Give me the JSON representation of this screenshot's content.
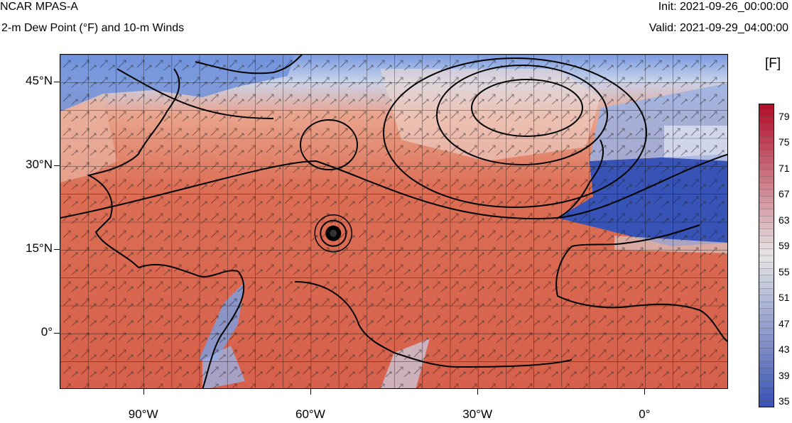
{
  "header": {
    "title": "NCAR MPAS-A",
    "subtitle": "2-m Dew Point (°F) and 10-m Winds",
    "init": "Init: 2021-09-26_00:00:00",
    "valid": "Valid: 2021-09-29_04:00:00"
  },
  "map": {
    "lon_range": [
      -105,
      15
    ],
    "lat_range": [
      -10,
      50
    ],
    "lat_ticks": [
      {
        "value": 45,
        "label": "45°N"
      },
      {
        "value": 30,
        "label": "30°N"
      },
      {
        "value": 15,
        "label": "15°N"
      },
      {
        "value": 0,
        "label": "0°"
      }
    ],
    "lon_ticks": [
      {
        "value": -90,
        "label": "90°W"
      },
      {
        "value": -60,
        "label": "60°W"
      },
      {
        "value": -30,
        "label": "30°W"
      },
      {
        "value": 0,
        "label": "0°"
      }
    ],
    "hurricane_center": {
      "lon": -56,
      "lat": 18
    }
  },
  "colorbar": {
    "unit": "[F]",
    "labels": [
      "79",
      "75",
      "71",
      "67",
      "63",
      "59",
      "55",
      "51",
      "47",
      "43",
      "39",
      "35"
    ],
    "colors": {
      "low": "#3a55b4",
      "mid": "#e5e5e5",
      "high": "#b2102b"
    }
  }
}
